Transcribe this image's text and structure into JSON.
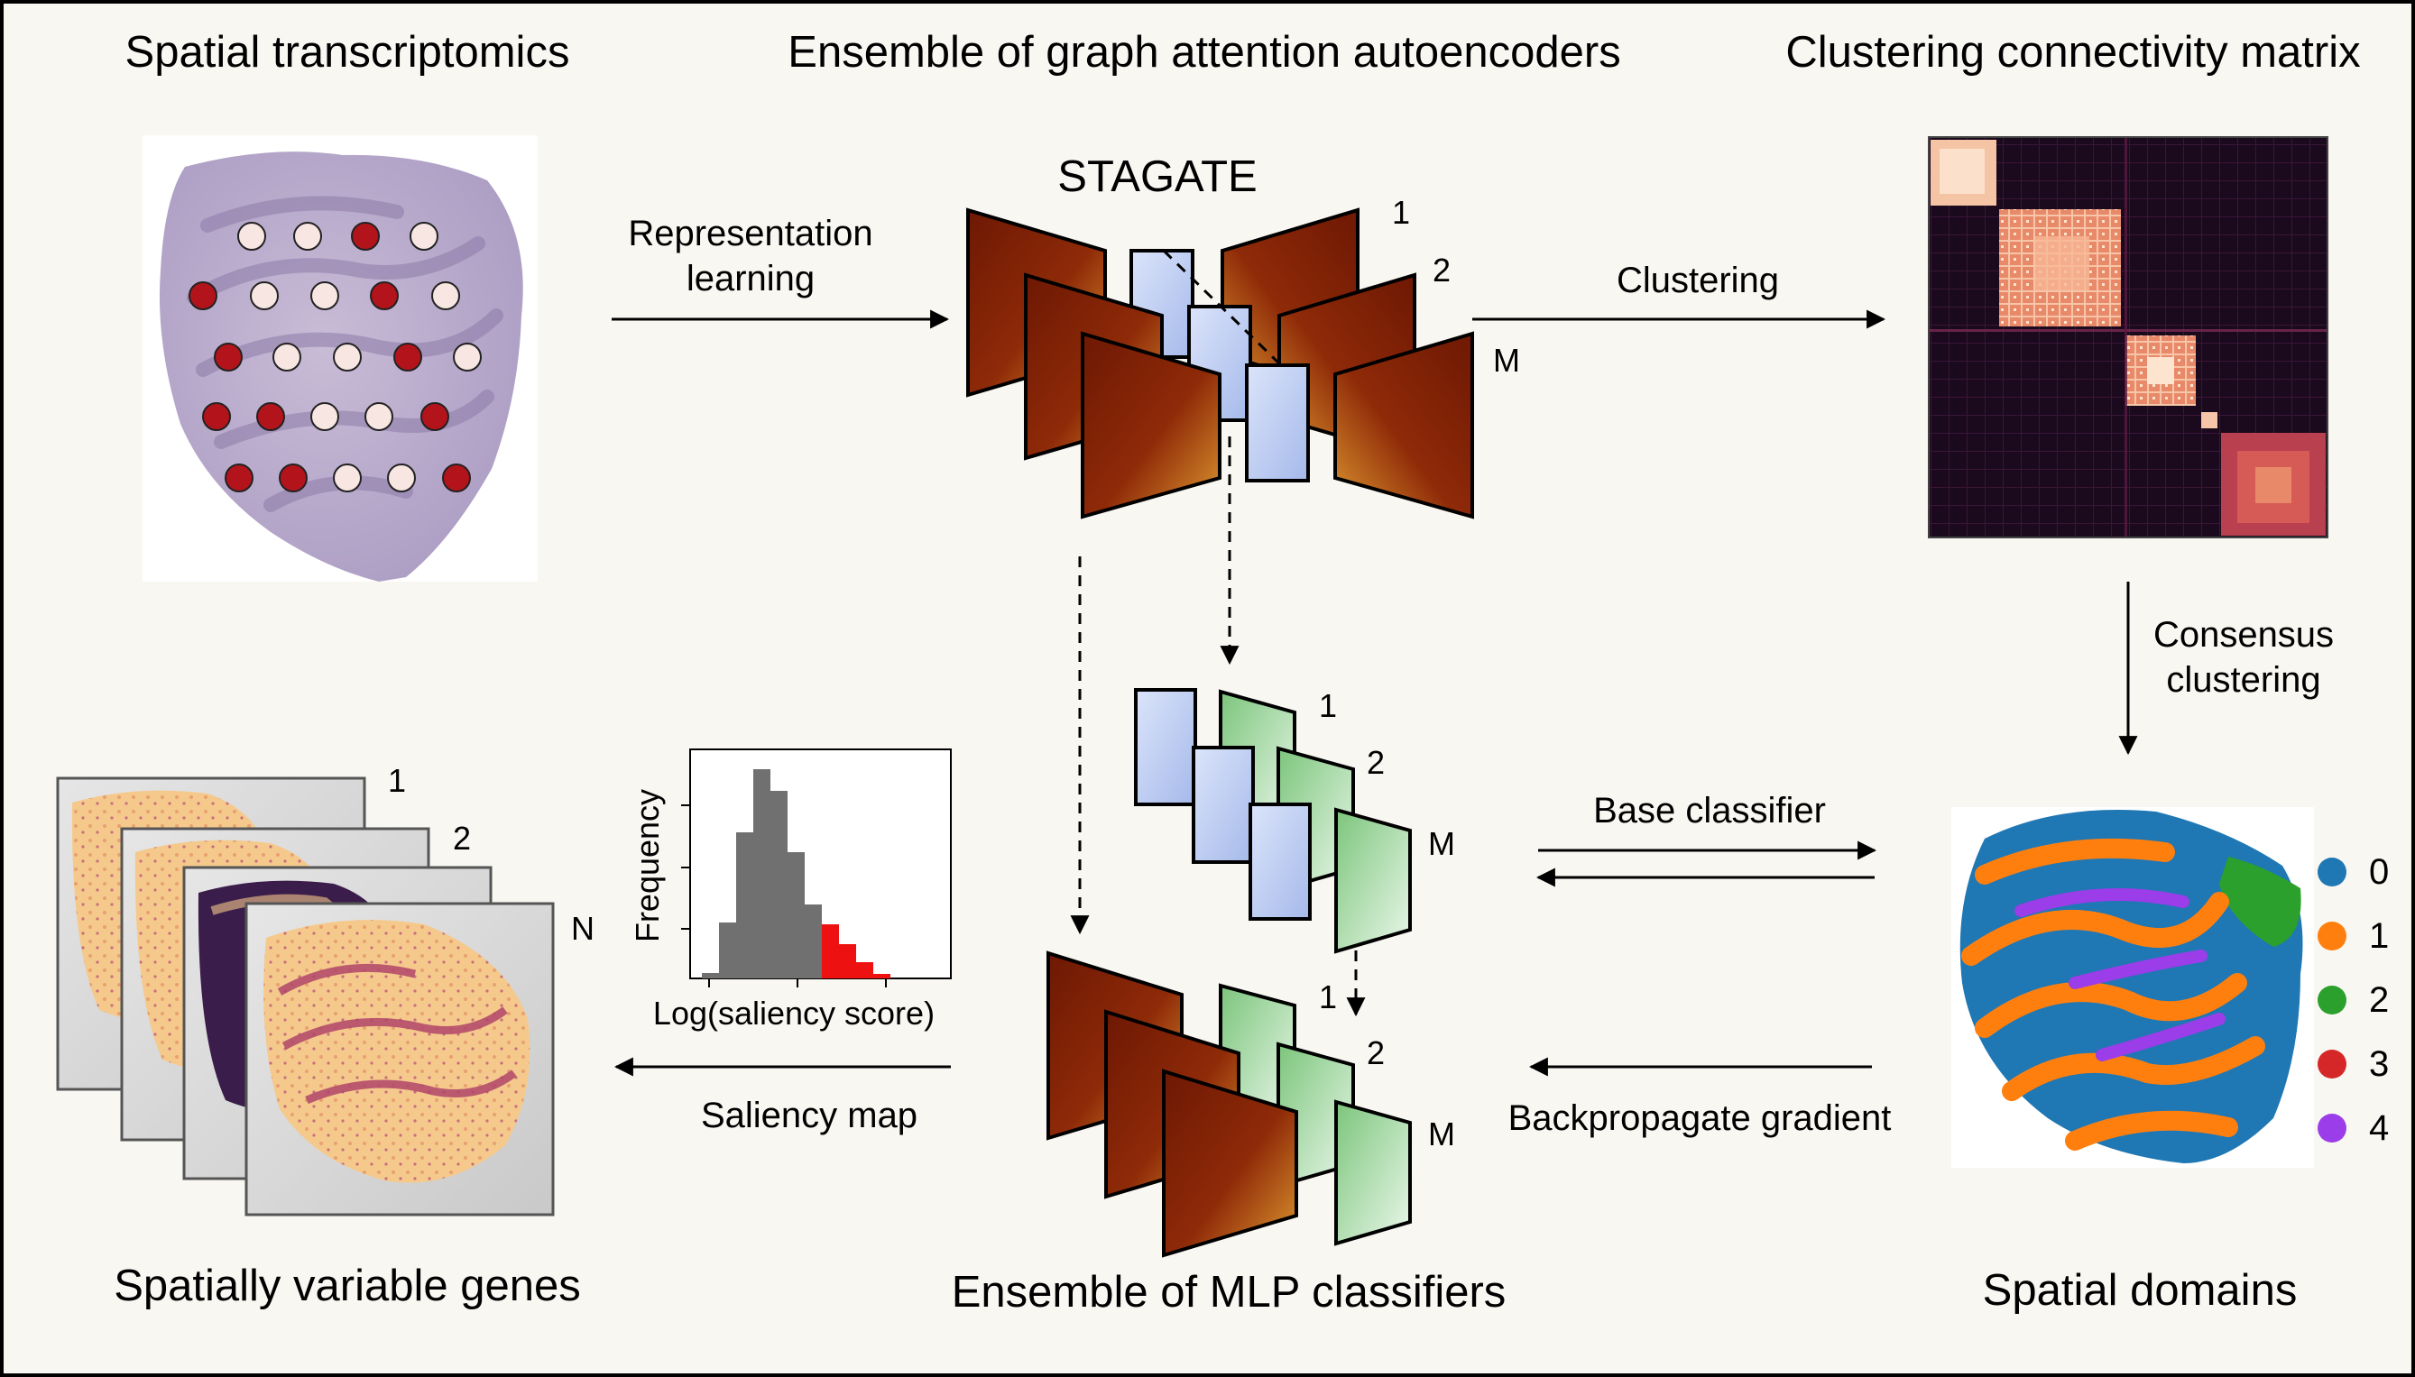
{
  "titles": {
    "spatial_transcriptomics": "Spatial transcriptomics",
    "ensemble_gat": "Ensemble of graph attention autoencoders",
    "connectivity": "Clustering connectivity matrix",
    "svg_genes": "Spatially variable genes",
    "mlp": "Ensemble of MLP classifiers",
    "domains": "Spatial domains"
  },
  "stagate_label": "STAGATE",
  "arrows": {
    "representation": [
      "Representation",
      "learning"
    ],
    "clustering": "Clustering",
    "consensus": [
      "Consensus",
      "clustering"
    ],
    "base_classifier": "Base classifier",
    "backprop": "Backpropagate gradient",
    "saliency": "Saliency map"
  },
  "indices": {
    "one": "1",
    "two": "2",
    "m": "M",
    "n": "N"
  },
  "histogram": {
    "ylabel": "Frequency",
    "xlabel": "Log(saliency score)",
    "gray_color": "#707070",
    "red_color": "#ee1111"
  },
  "legend": [
    {
      "label": "0",
      "color": "#1f77b4"
    },
    {
      "label": "1",
      "color": "#ff7f0e"
    },
    {
      "label": "2",
      "color": "#2ca02c"
    },
    {
      "label": "3",
      "color": "#d62728"
    },
    {
      "label": "4",
      "color": "#9b3de8"
    }
  ],
  "colors": {
    "encoder_dark": "#7a1c06",
    "encoder_light": "#d98a2a",
    "latent_blue": "#b8c8f0",
    "classifier_green": "#9fd69f",
    "spot_red": "#b3141b",
    "spot_light": "#f7e6e2"
  }
}
